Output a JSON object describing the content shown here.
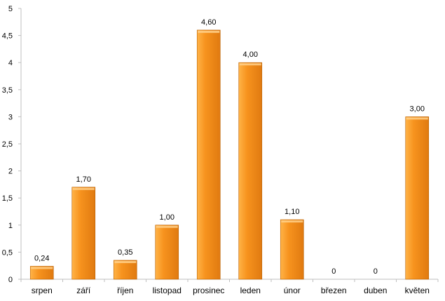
{
  "chart_data": {
    "type": "bar",
    "categories": [
      "srpen",
      "září",
      "říjen",
      "listopad",
      "prosinec",
      "leden",
      "únor",
      "březen",
      "duben",
      "květen"
    ],
    "values": [
      0.24,
      1.7,
      0.35,
      1.0,
      4.6,
      4.0,
      1.1,
      0,
      0,
      3.0
    ],
    "value_labels": [
      "0,24",
      "1,70",
      "0,35",
      "1,00",
      "4,60",
      "4,00",
      "1,10",
      "0",
      "0",
      "3,00"
    ],
    "y_ticks": [
      0,
      0.5,
      1,
      1.5,
      2,
      2.5,
      3,
      3.5,
      4,
      4.5,
      5
    ],
    "y_tick_labels": [
      "0",
      "0,5",
      "1",
      "1,5",
      "2",
      "2,5",
      "3",
      "3,5",
      "4",
      "4,5",
      "5"
    ],
    "ylim": [
      0,
      5
    ],
    "grid": false,
    "legend": "none",
    "title": "",
    "xlabel": "",
    "ylabel": "",
    "colors": {
      "bar_light": "#ffb347",
      "bar_mid": "#f7931e",
      "bar_dark": "#e07a10",
      "bar_edge": "#b85f00",
      "axis": "#bfbfbf"
    }
  }
}
